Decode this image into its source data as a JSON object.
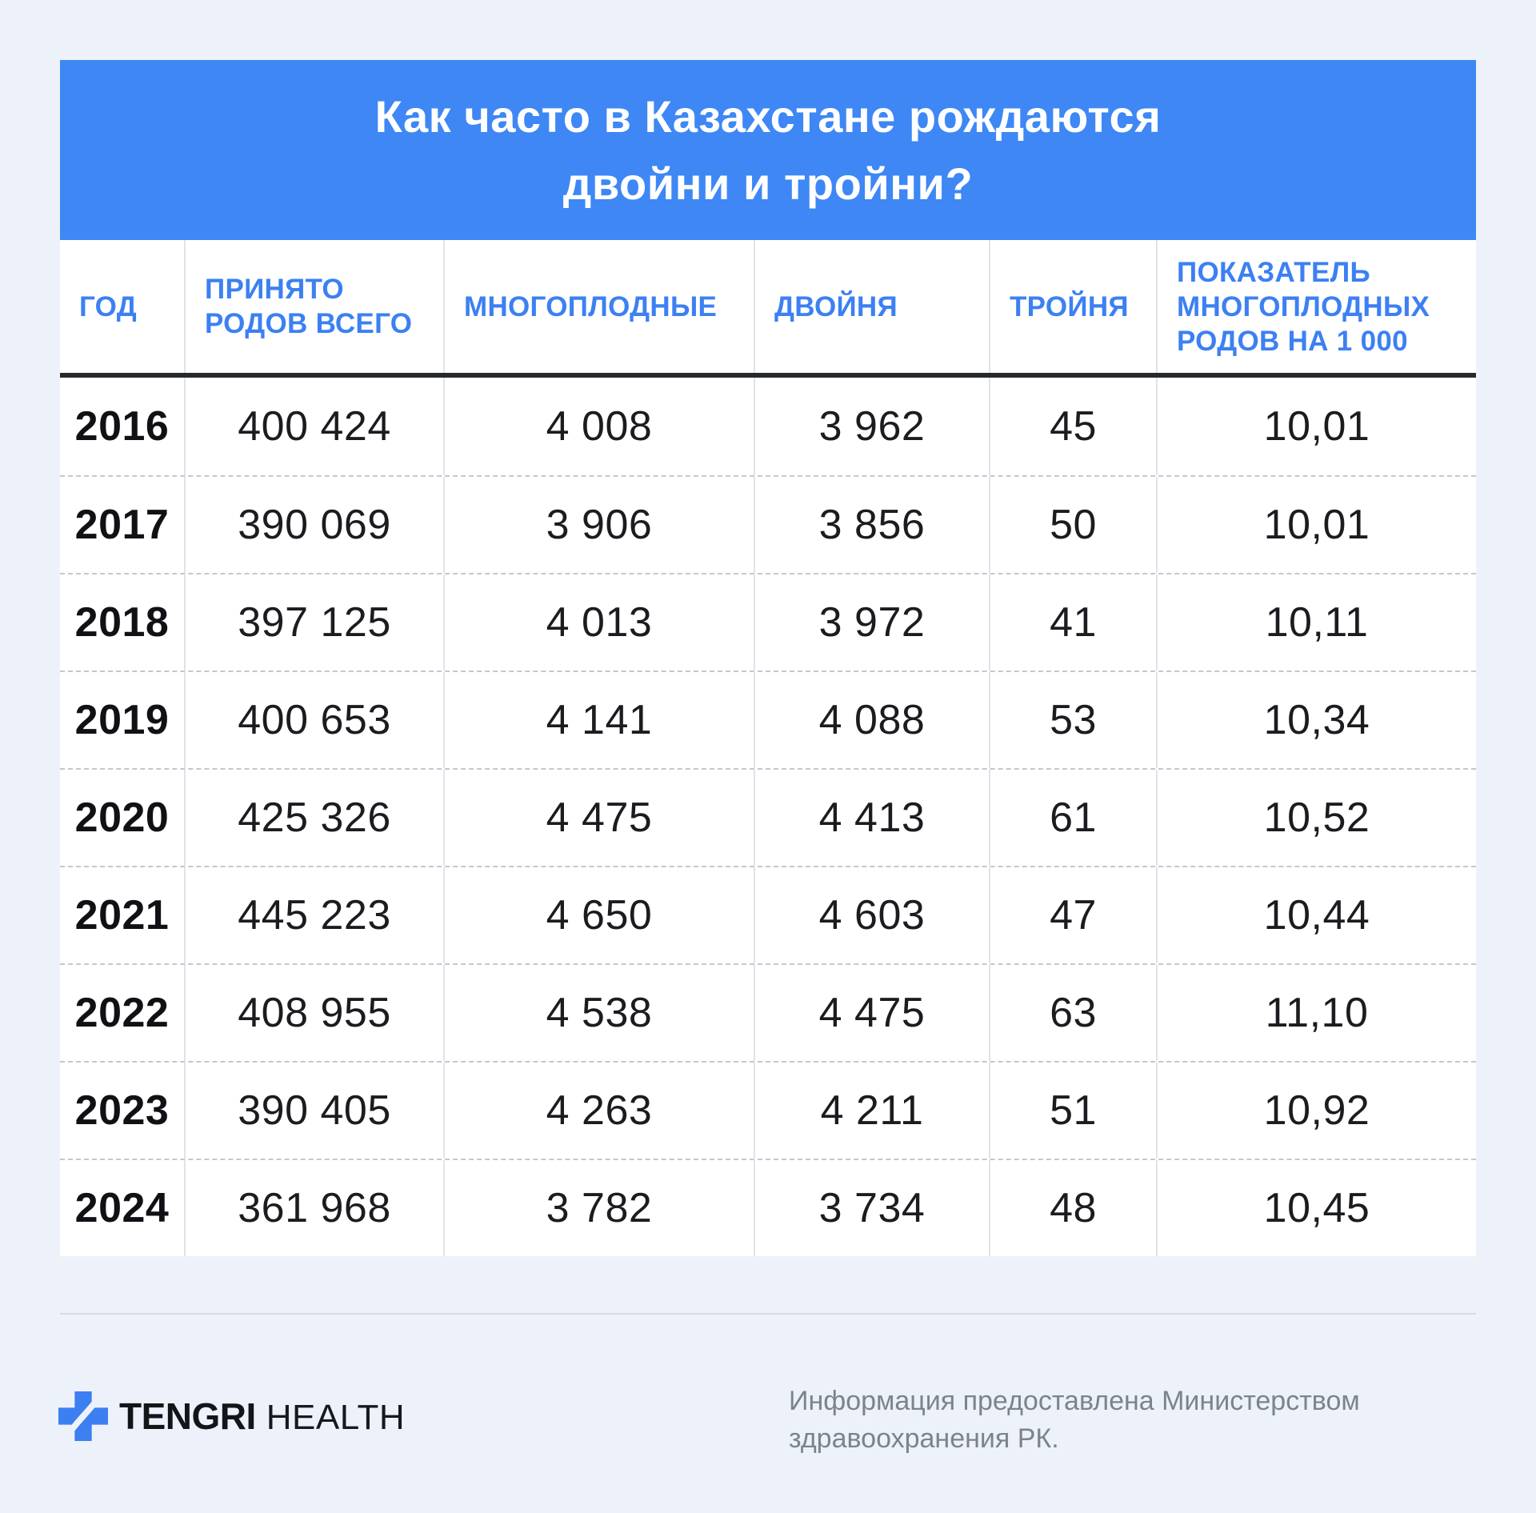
{
  "title": {
    "line1": "Как часто в Казахстане рождаются",
    "line2": "двойни и тройни?"
  },
  "chart_data": {
    "type": "table",
    "title": "Как часто в Казахстане рождаются двойни и тройни?",
    "columns": [
      "ГОД",
      "ПРИНЯТО РОДОВ ВСЕГО",
      "МНОГОПЛОДНЫЕ",
      "ДВОЙНЯ",
      "ТРОЙНЯ",
      "ПОКАЗАТЕЛЬ МНОГОПЛОДНЫХ РОДОВ НА 1 000"
    ],
    "rows": [
      [
        "2016",
        "400 424",
        "4 008",
        "3 962",
        "45",
        "10,01"
      ],
      [
        "2017",
        "390 069",
        "3 906",
        "3 856",
        "50",
        "10,01"
      ],
      [
        "2018",
        "397 125",
        "4 013",
        "3 972",
        "41",
        "10,11"
      ],
      [
        "2019",
        "400 653",
        "4 141",
        "4 088",
        "53",
        "10,34"
      ],
      [
        "2020",
        "425 326",
        "4 475",
        "4 413",
        "61",
        "10,52"
      ],
      [
        "2021",
        "445 223",
        "4 650",
        "4 603",
        "47",
        "10,44"
      ],
      [
        "2022",
        "408 955",
        "4 538",
        "4 475",
        "63",
        "11,10"
      ],
      [
        "2023",
        "390 405",
        "4 263",
        "4 211",
        "51",
        "10,92"
      ],
      [
        "2024",
        "361 968",
        "3 782",
        "3 734",
        "48",
        "10,45"
      ]
    ],
    "layout": {
      "grid": "solid vertical column lines, dashed horizontal row separators",
      "header_rule": "thick dark line under header row"
    }
  },
  "footer": {
    "brand": "TENGRI",
    "brand_suffix": "HEALTH",
    "attribution_line1": "Информация предоставлена Министерством",
    "attribution_line2": "здравоохранения РК."
  },
  "colors": {
    "page_bg": "#EDF2FA",
    "card_bg": "#FFFFFF",
    "banner_blue": "#3E87F5",
    "header_text_blue": "#3C80F2",
    "logo_blue": "#3C7FF0",
    "body_text": "#1A1C20",
    "muted_text": "#7D838D",
    "header_rule": "#26292C"
  }
}
